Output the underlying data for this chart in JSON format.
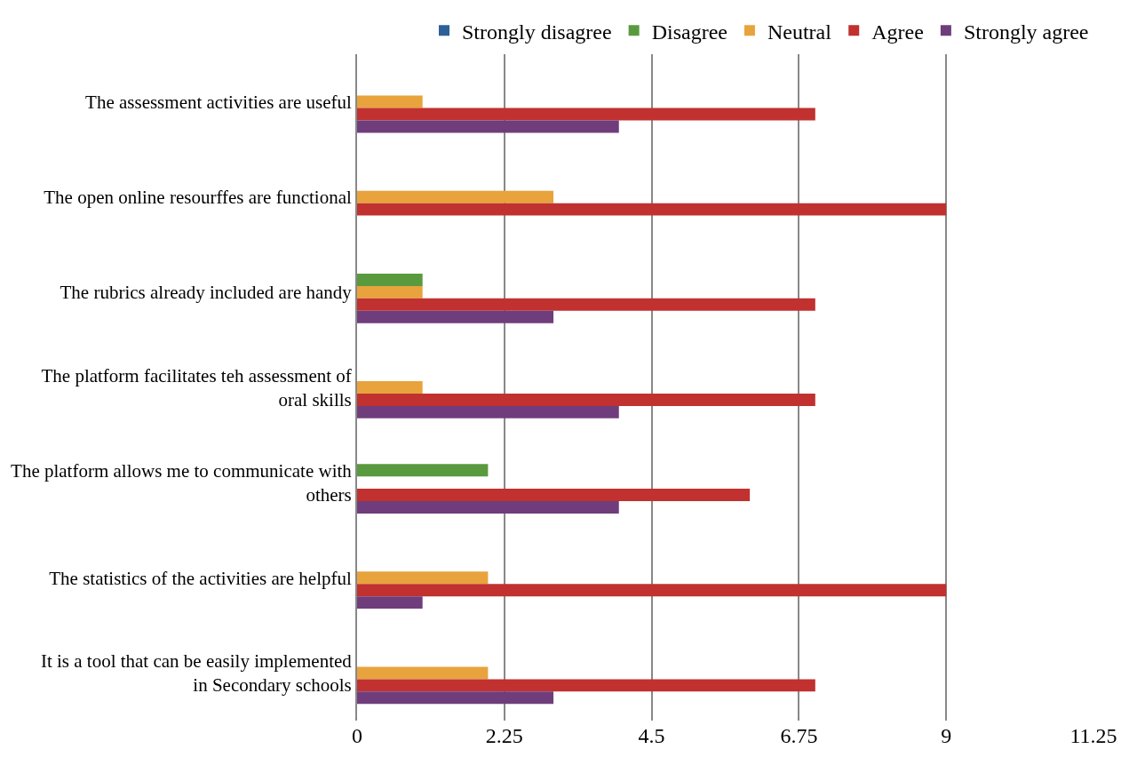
{
  "chart_data": {
    "type": "bar",
    "orientation": "horizontal",
    "categories": [
      "The assessment activities are useful",
      "The open online resourffes are functional",
      "The rubrics already included are handy",
      "The platform facilitates teh assessment of oral skills",
      "The platform allows me to communicate with others",
      "The statistics of the activities are helpful",
      "It is a tool that can be easily implemented in Secondary schools"
    ],
    "series": [
      {
        "name": "Strongly disagree",
        "color": "#2e5f98",
        "values": [
          0,
          0,
          0,
          0,
          0,
          0,
          0
        ]
      },
      {
        "name": "Disagree",
        "color": "#5a9a3f",
        "values": [
          0,
          0,
          1,
          0,
          2,
          0,
          0
        ]
      },
      {
        "name": "Neutral",
        "color": "#e8a33d",
        "values": [
          1,
          3,
          1,
          1,
          0,
          2,
          2
        ]
      },
      {
        "name": "Agree",
        "color": "#c0312f",
        "values": [
          7,
          9,
          7,
          7,
          6,
          9,
          7
        ]
      },
      {
        "name": "Strongly agree",
        "color": "#6f3d7c",
        "values": [
          4,
          0,
          3,
          4,
          4,
          1,
          3
        ]
      }
    ],
    "xlim": [
      0,
      11.25
    ],
    "xticks": [
      0,
      2.25,
      4.5,
      6.75,
      9,
      11.25
    ],
    "grid": "x",
    "legend": "top"
  }
}
